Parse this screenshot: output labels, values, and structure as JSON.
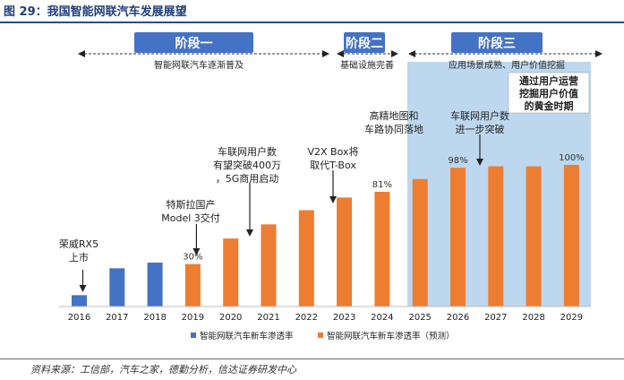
{
  "figure_title": "图 29：我国智能网联汽车发展展望",
  "source_note": "资料来源：工信部，汽车之家，德勤分析，信达证券研发中心",
  "colors": {
    "historical": "#4472c4",
    "forecast": "#ed7d31",
    "stage_box": "#4472c4",
    "highlight": "#bdd7ee",
    "title": "#1f3e7a"
  },
  "stages": [
    {
      "label": "阶段一",
      "desc": "智能网联汽车逐渐普及"
    },
    {
      "label": "阶段二",
      "desc": "基础设施完善"
    },
    {
      "label": "阶段三",
      "desc": "应用场景成熟、用户价值挖掘"
    }
  ],
  "golden_period_note": [
    "通过用户运营",
    "挖掘用户价值",
    "的黄金时期"
  ],
  "annotations": [
    {
      "year": "2016",
      "lines": [
        "荣威RX5",
        "上市"
      ]
    },
    {
      "year": "2019",
      "lines": [
        "特斯拉国产",
        "Model 3交付"
      ]
    },
    {
      "year": "2020",
      "lines": [
        "车联网用户数",
        "有望突破400万",
        "，5G商用启动"
      ]
    },
    {
      "year": "2023",
      "lines": [
        "V2X Box将",
        "取代T-Box"
      ]
    },
    {
      "year": "2024",
      "lines": [
        "高精地图和",
        "车路协同落地"
      ]
    },
    {
      "year": "2026",
      "lines": [
        "车联网用户数",
        "进一步突破"
      ]
    }
  ],
  "chart_data": {
    "type": "bar",
    "title": "我国智能网联汽车发展展望",
    "categories": [
      "2016",
      "2017",
      "2018",
      "2019",
      "2020",
      "2021",
      "2022",
      "2023",
      "2024",
      "2025",
      "2026",
      "2027",
      "2028",
      "2029"
    ],
    "series": [
      {
        "name": "智能网联汽车新车渗透率",
        "color": "#4472c4",
        "values": [
          8,
          27,
          31,
          null,
          null,
          null,
          null,
          null,
          null,
          null,
          null,
          null,
          null,
          null
        ]
      },
      {
        "name": "智能网联汽车新车渗透率（预测）",
        "color": "#ed7d31",
        "values": [
          null,
          null,
          null,
          30,
          48,
          58,
          68,
          77,
          81,
          90,
          98,
          99,
          99,
          100
        ]
      }
    ],
    "data_labels": [
      {
        "category": "2019",
        "text": "30%"
      },
      {
        "category": "2024",
        "text": "81%"
      },
      {
        "category": "2026",
        "text": "98%"
      },
      {
        "category": "2029",
        "text": "100%"
      }
    ],
    "ylim": [
      0,
      100
    ],
    "xlabel": "",
    "ylabel": "",
    "legend_position": "bottom",
    "grid": false
  }
}
